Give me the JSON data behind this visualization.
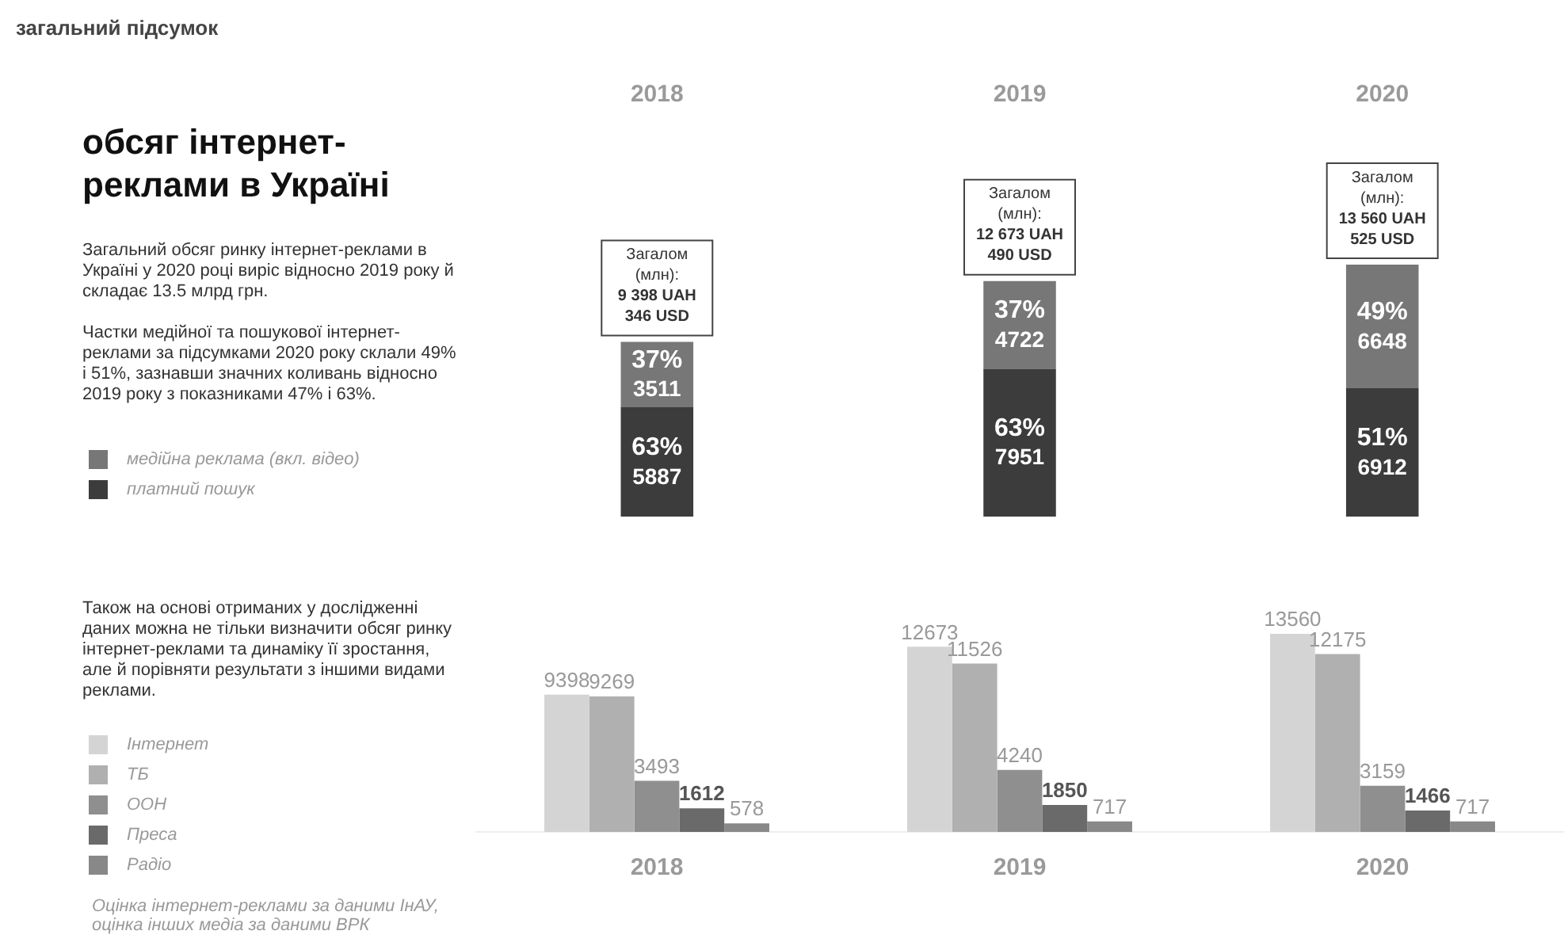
{
  "chart_data": [
    {
      "type": "bar",
      "stacked": true,
      "title": "обсяг інтернет-реклами в Україні",
      "categories": [
        "2018",
        "2019",
        "2020"
      ],
      "annotations": [
        "загальний підсумок",
        "Загальний обсяг ринку інтернет-реклами в Україні у 2020 році виріс відносно 2019 року й складає 13.5 млрд грн.",
        "Частки медійної та пошукової інтернет-реклами за підсумками 2020 року склали 49% і 51%, зазнавши значних коливань відносно 2019 року з показниками 47% і 63%.",
        "63%",
        "37%",
        "63%",
        "37%",
        "51%",
        "49%"
      ],
      "series": [
        {
          "name": "платний пошук",
          "color": "#3c3c3c",
          "values": [
            5887,
            7951,
            6912
          ]
        },
        {
          "name": "медійна реклама (вкл. відео)",
          "color": "#777777",
          "values": [
            3511,
            4722,
            6648
          ]
        }
      ],
      "totals": [
        "Загалом\n(млн):\n9 398 UAH\n346 USD",
        "Загалом\n(млн):\n12 673 UAH\n490 USD",
        "Загалом\n(млн):\n13 560 UAH\n525 USD"
      ],
      "data_labels": true,
      "legend": "left"
    },
    {
      "type": "bar",
      "categories": [
        "2018",
        "2019",
        "2020"
      ],
      "annotations": [
        "Також на основі отриманих у дослідженні даних можна не тільки визначити обсяг ринку інтернет-реклами та динаміку її зростання, але й порівняти результати з іншими видами реклами.",
        "Оцінка інтернет-реклами за даними ІнАУ, оцінка інших медіа за даними ВРК"
      ],
      "series": [
        {
          "name": "Інтернет",
          "color": "#d4d4d4",
          "values": [
            9398,
            12673,
            13560
          ]
        },
        {
          "name": "ТБ",
          "color": "#b0b0b0",
          "values": [
            9269,
            11526,
            12175
          ]
        },
        {
          "name": "ООН",
          "color": "#8f8f8f",
          "values": [
            3493,
            4240,
            3159
          ]
        },
        {
          "name": "Преса",
          "color": "#6a6a6a",
          "values": [
            1612,
            1850,
            1466
          ]
        },
        {
          "name": "Радіо",
          "color": "#888888",
          "values": [
            578,
            717,
            717
          ]
        }
      ],
      "data_labels": true,
      "legend": "left"
    }
  ]
}
